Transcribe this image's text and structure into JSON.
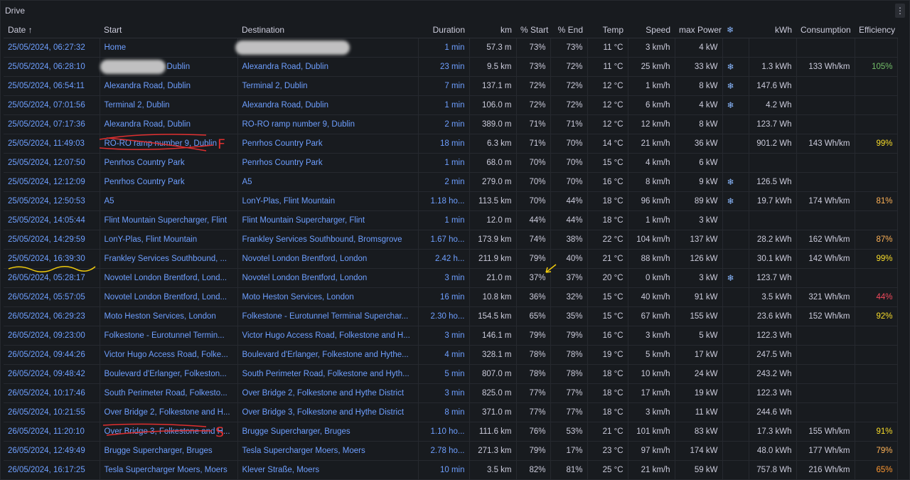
{
  "panel": {
    "title": "Drive",
    "menu_icon": "kebab-menu-icon"
  },
  "columns": [
    "Date",
    "Start",
    "Destination",
    "Duration",
    "km",
    "% Start",
    "% End",
    "Temp",
    "Speed",
    "max Power",
    "",
    "kWh",
    "Consumption",
    "Efficiency"
  ],
  "sort_icon": "arrow-up-icon",
  "snow_glyph": "❄",
  "colors": {
    "link": "#6e9fff",
    "efficiency_green": "#73bf69",
    "efficiency_yellow": "#fade2a",
    "efficiency_orange": "#ff9830",
    "efficiency_red": "#f2495c",
    "annotation_red": "#e02f2f",
    "annotation_yellow": "#f2cc0c"
  },
  "rows": [
    {
      "date": "25/05/2024, 06:27:32",
      "start": "Home",
      "dest": "",
      "duration": "1 min",
      "km": "57.3 m",
      "s_start": "73%",
      "s_end": "73%",
      "temp": "11 °C",
      "speed": "3 km/h",
      "power": "4 kW",
      "snow": false,
      "kwh": "",
      "cons": "",
      "eff": "",
      "eff_class": ""
    },
    {
      "date": "25/05/2024, 06:28:10",
      "start": "Dublin",
      "dest": "Alexandra Road, Dublin",
      "duration": "23 min",
      "km": "9.5 km",
      "s_start": "73%",
      "s_end": "72%",
      "temp": "11 °C",
      "speed": "25 km/h",
      "power": "33 kW",
      "snow": true,
      "kwh": "1.3 kWh",
      "cons": "133 Wh/km",
      "eff": "105%",
      "eff_class": "eff-g"
    },
    {
      "date": "25/05/2024, 06:54:11",
      "start": "Alexandra Road, Dublin",
      "dest": "Terminal 2, Dublin",
      "duration": "7 min",
      "km": "137.1 m",
      "s_start": "72%",
      "s_end": "72%",
      "temp": "12 °C",
      "speed": "1 km/h",
      "power": "8 kW",
      "snow": true,
      "kwh": "147.6 Wh",
      "cons": "",
      "eff": "",
      "eff_class": ""
    },
    {
      "date": "25/05/2024, 07:01:56",
      "start": "Terminal 2, Dublin",
      "dest": "Alexandra Road, Dublin",
      "duration": "1 min",
      "km": "106.0 m",
      "s_start": "72%",
      "s_end": "72%",
      "temp": "12 °C",
      "speed": "6 km/h",
      "power": "4 kW",
      "snow": true,
      "kwh": "4.2 Wh",
      "cons": "",
      "eff": "",
      "eff_class": ""
    },
    {
      "date": "25/05/2024, 07:17:36",
      "start": "Alexandra Road, Dublin",
      "dest": "RO-RO ramp number 9, Dublin",
      "duration": "2 min",
      "km": "389.0 m",
      "s_start": "71%",
      "s_end": "71%",
      "temp": "12 °C",
      "speed": "12 km/h",
      "power": "8 kW",
      "snow": false,
      "kwh": "123.7 Wh",
      "cons": "",
      "eff": "",
      "eff_class": ""
    },
    {
      "date": "25/05/2024, 11:49:03",
      "start": "RO-RO ramp number 9, Dublin",
      "dest": "Penrhos Country Park",
      "duration": "18 min",
      "km": "6.3 km",
      "s_start": "71%",
      "s_end": "70%",
      "temp": "14 °C",
      "speed": "21 km/h",
      "power": "36 kW",
      "snow": false,
      "kwh": "901.2 Wh",
      "cons": "143 Wh/km",
      "eff": "99%",
      "eff_class": "eff-y"
    },
    {
      "date": "25/05/2024, 12:07:50",
      "start": "Penrhos Country Park",
      "dest": "Penrhos Country Park",
      "duration": "1 min",
      "km": "68.0 m",
      "s_start": "70%",
      "s_end": "70%",
      "temp": "15 °C",
      "speed": "4 km/h",
      "power": "6 kW",
      "snow": false,
      "kwh": "",
      "cons": "",
      "eff": "",
      "eff_class": ""
    },
    {
      "date": "25/05/2024, 12:12:09",
      "start": "Penrhos Country Park",
      "dest": "A5",
      "duration": "2 min",
      "km": "279.0 m",
      "s_start": "70%",
      "s_end": "70%",
      "temp": "16 °C",
      "speed": "8 km/h",
      "power": "9 kW",
      "snow": true,
      "kwh": "126.5 Wh",
      "cons": "",
      "eff": "",
      "eff_class": ""
    },
    {
      "date": "25/05/2024, 12:50:53",
      "start": "A5",
      "dest": "LonY-Plas, Flint Mountain",
      "duration": "1.18 ho...",
      "km": "113.5 km",
      "s_start": "70%",
      "s_end": "44%",
      "temp": "18 °C",
      "speed": "96 km/h",
      "power": "89 kW",
      "snow": true,
      "kwh": "19.7 kWh",
      "cons": "174 Wh/km",
      "eff": "81%",
      "eff_class": "eff-orange2"
    },
    {
      "date": "25/05/2024, 14:05:44",
      "start": "Flint Mountain Supercharger, Flint",
      "dest": "Flint Mountain Supercharger, Flint",
      "duration": "1 min",
      "km": "12.0 m",
      "s_start": "44%",
      "s_end": "44%",
      "temp": "18 °C",
      "speed": "1 km/h",
      "power": "3 kW",
      "snow": false,
      "kwh": "",
      "cons": "",
      "eff": "",
      "eff_class": ""
    },
    {
      "date": "25/05/2024, 14:29:59",
      "start": "LonY-Plas, Flint Mountain",
      "dest": "Frankley Services Southbound, Bromsgrove",
      "duration": "1.67 ho...",
      "km": "173.9 km",
      "s_start": "74%",
      "s_end": "38%",
      "temp": "22 °C",
      "speed": "104 km/h",
      "power": "137 kW",
      "snow": false,
      "kwh": "28.2 kWh",
      "cons": "162 Wh/km",
      "eff": "87%",
      "eff_class": "eff-orange2"
    },
    {
      "date": "25/05/2024, 16:39:30",
      "start": "Frankley Services Southbound, ...",
      "dest": "Novotel London Brentford, London",
      "duration": "2.42 h...",
      "km": "211.9 km",
      "s_start": "79%",
      "s_end": "40%",
      "temp": "21 °C",
      "speed": "88 km/h",
      "power": "126 kW",
      "snow": false,
      "kwh": "30.1 kWh",
      "cons": "142 Wh/km",
      "eff": "99%",
      "eff_class": "eff-y"
    },
    {
      "date": "26/05/2024, 05:28:17",
      "start": "Novotel London Brentford, Lond...",
      "dest": "Novotel London Brentford, London",
      "duration": "3 min",
      "km": "21.0 m",
      "s_start": "37%",
      "s_end": "37%",
      "temp": "20 °C",
      "speed": "0 km/h",
      "power": "3 kW",
      "snow": true,
      "kwh": "123.7 Wh",
      "cons": "",
      "eff": "",
      "eff_class": ""
    },
    {
      "date": "26/05/2024, 05:57:05",
      "start": "Novotel London Brentford, Lond...",
      "dest": "Moto Heston Services, London",
      "duration": "16 min",
      "km": "10.8 km",
      "s_start": "36%",
      "s_end": "32%",
      "temp": "15 °C",
      "speed": "40 km/h",
      "power": "91 kW",
      "snow": false,
      "kwh": "3.5 kWh",
      "cons": "321 Wh/km",
      "eff": "44%",
      "eff_class": "eff-red"
    },
    {
      "date": "26/05/2024, 06:29:23",
      "start": "Moto Heston Services, London",
      "dest": "Folkestone - Eurotunnel Terminal Superchar...",
      "duration": "2.30 ho...",
      "km": "154.5 km",
      "s_start": "65%",
      "s_end": "35%",
      "temp": "15 °C",
      "speed": "67 km/h",
      "power": "155 kW",
      "snow": false,
      "kwh": "23.6 kWh",
      "cons": "152 Wh/km",
      "eff": "92%",
      "eff_class": "eff-y"
    },
    {
      "date": "26/05/2024, 09:23:00",
      "start": "Folkestone - Eurotunnel Termin...",
      "dest": "Victor Hugo Access Road, Folkestone and H...",
      "duration": "3 min",
      "km": "146.1 m",
      "s_start": "79%",
      "s_end": "79%",
      "temp": "16 °C",
      "speed": "3 km/h",
      "power": "5 kW",
      "snow": false,
      "kwh": "122.3 Wh",
      "cons": "",
      "eff": "",
      "eff_class": ""
    },
    {
      "date": "26/05/2024, 09:44:26",
      "start": "Victor Hugo Access Road, Folke...",
      "dest": "Boulevard d'Erlanger, Folkestone and Hythe...",
      "duration": "4 min",
      "km": "328.1 m",
      "s_start": "78%",
      "s_end": "78%",
      "temp": "19 °C",
      "speed": "5 km/h",
      "power": "17 kW",
      "snow": false,
      "kwh": "247.5 Wh",
      "cons": "",
      "eff": "",
      "eff_class": ""
    },
    {
      "date": "26/05/2024, 09:48:42",
      "start": "Boulevard d'Erlanger, Folkeston...",
      "dest": "South Perimeter Road, Folkestone and Hyth...",
      "duration": "5 min",
      "km": "807.0 m",
      "s_start": "78%",
      "s_end": "78%",
      "temp": "18 °C",
      "speed": "10 km/h",
      "power": "24 kW",
      "snow": false,
      "kwh": "243.2 Wh",
      "cons": "",
      "eff": "",
      "eff_class": ""
    },
    {
      "date": "26/05/2024, 10:17:46",
      "start": "South Perimeter Road, Folkesto...",
      "dest": "Over Bridge 2, Folkestone and Hythe District",
      "duration": "3 min",
      "km": "825.0 m",
      "s_start": "77%",
      "s_end": "77%",
      "temp": "18 °C",
      "speed": "17 km/h",
      "power": "19 kW",
      "snow": false,
      "kwh": "122.3 Wh",
      "cons": "",
      "eff": "",
      "eff_class": ""
    },
    {
      "date": "26/05/2024, 10:21:55",
      "start": "Over Bridge 2, Folkestone and H...",
      "dest": "Over Bridge 3, Folkestone and Hythe District",
      "duration": "8 min",
      "km": "371.0 m",
      "s_start": "77%",
      "s_end": "77%",
      "temp": "18 °C",
      "speed": "3 km/h",
      "power": "11 kW",
      "snow": false,
      "kwh": "244.6 Wh",
      "cons": "",
      "eff": "",
      "eff_class": ""
    },
    {
      "date": "26/05/2024, 11:20:10",
      "start": "Over Bridge 3, Folkestone and H...",
      "dest": "Brugge Supercharger, Bruges",
      "duration": "1.10 ho...",
      "km": "111.6 km",
      "s_start": "76%",
      "s_end": "53%",
      "temp": "21 °C",
      "speed": "101 km/h",
      "power": "83 kW",
      "snow": false,
      "kwh": "17.3 kWh",
      "cons": "155 Wh/km",
      "eff": "91%",
      "eff_class": "eff-y"
    },
    {
      "date": "26/05/2024, 12:49:49",
      "start": "Brugge Supercharger, Bruges",
      "dest": "Tesla Supercharger Moers, Moers",
      "duration": "2.78 ho...",
      "km": "271.3 km",
      "s_start": "79%",
      "s_end": "17%",
      "temp": "23 °C",
      "speed": "97 km/h",
      "power": "174 kW",
      "snow": false,
      "kwh": "48.0 kWh",
      "cons": "177 Wh/km",
      "eff": "79%",
      "eff_class": "eff-orange2"
    },
    {
      "date": "26/05/2024, 16:17:25",
      "start": "Tesla Supercharger Moers, Moers",
      "dest": "Klever Straße, Moers",
      "duration": "10 min",
      "km": "3.5 km",
      "s_start": "82%",
      "s_end": "81%",
      "temp": "25 °C",
      "speed": "21 km/h",
      "power": "59 kW",
      "snow": false,
      "kwh": "757.8 Wh",
      "cons": "216 Wh/km",
      "eff": "65%",
      "eff_class": "eff-o"
    }
  ],
  "annotations": {
    "letter_f": "F",
    "letter_s": "S"
  }
}
